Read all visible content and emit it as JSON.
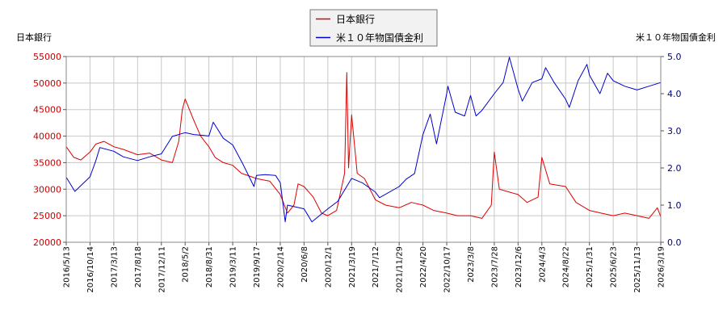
{
  "chart_data": {
    "type": "line",
    "left_axis_title": "日本銀行",
    "right_axis_title": "米１０年物国債金利",
    "ylim_left": [
      20000,
      55000
    ],
    "ylim_right": [
      0.0,
      5.0
    ],
    "yticks_left": [
      "55000",
      "50000",
      "45000",
      "40000",
      "35000",
      "30000",
      "25000",
      "20000"
    ],
    "yticks_right": [
      "5.0",
      "4.0",
      "3.0",
      "2.0",
      "1.0",
      "0.0"
    ],
    "x_tick_labels": [
      "2016/5/13",
      "2016/10/14",
      "2017/3/13",
      "2017/8/18",
      "2017/12/11",
      "2018/5/2",
      "2018/8/31",
      "2019/3/11",
      "2019/9/17",
      "2020/2/14",
      "2020/6/8",
      "2020/12/1",
      "2021/3/19",
      "2021/7/12",
      "2021/11/29",
      "2022/4/20",
      "2022/10/17",
      "2023/3/8",
      "2023/7/28",
      "2023/12/6",
      "2024/4/3",
      "2024/8/22",
      "2025/1/31",
      "2025/6/23",
      "2025/11/13",
      "2026/3/19"
    ],
    "grid": true,
    "legend_position": "top-center",
    "colors": {
      "series1": "#dd0000",
      "series2": "#0000cc",
      "left_ticks": "#cc0000",
      "right_ticks": "#000080",
      "grid": "#c8c8c8"
    },
    "series": [
      {
        "name": "日本銀行",
        "axis": "left",
        "x": [
          "2016/5/13",
          "2016/7/1",
          "2016/8/15",
          "2016/10/14",
          "2016/11/20",
          "2017/1/10",
          "2017/3/13",
          "2017/5/15",
          "2017/8/18",
          "2017/10/15",
          "2017/12/11",
          "2018/2/15",
          "2018/3/25",
          "2018/4/15",
          "2018/5/2",
          "2018/6/15",
          "2018/7/20",
          "2018/8/31",
          "2018/10/20",
          "2018/12/25",
          "2019/3/11",
          "2019/5/20",
          "2019/7/20",
          "2019/9/17",
          "2019/12/10",
          "2020/2/14",
          "2020/3/20",
          "2020/4/20",
          "2020/5/10",
          "2020/6/8",
          "2020/8/15",
          "2020/10/15",
          "2020/12/1",
          "2021/1/10",
          "2021/2/15",
          "2021/2/25",
          "2021/3/5",
          "2021/3/19",
          "2021/4/15",
          "2021/5/20",
          "2021/7/12",
          "2021/9/10",
          "2021/11/29",
          "2022/2/10",
          "2022/4/20",
          "2022/7/10",
          "2022/10/17",
          "2022/12/20",
          "2023/3/8",
          "2023/5/15",
          "2023/7/10",
          "2023/7/28",
          "2023/8/25",
          "2023/10/15",
          "2023/12/6",
          "2024/1/20",
          "2024/3/15",
          "2024/4/3",
          "2024/5/20",
          "2024/8/22",
          "2024/11/1",
          "2025/1/31",
          "2025/4/10",
          "2025/6/23",
          "2025/9/1",
          "2025/11/13",
          "2026/1/15",
          "2026/3/1",
          "2026/3/19",
          "2026/4/20"
        ],
        "values": [
          38000,
          36000,
          35500,
          37000,
          38500,
          39000,
          38000,
          37500,
          36500,
          36800,
          35500,
          35000,
          39000,
          45000,
          47000,
          43000,
          40000,
          38000,
          36000,
          35000,
          34500,
          33000,
          32500,
          32000,
          31500,
          29000,
          25500,
          27000,
          31000,
          30500,
          28500,
          25500,
          25000,
          26000,
          33000,
          52000,
          34000,
          44000,
          33000,
          32000,
          28000,
          27000,
          26500,
          27500,
          27000,
          26000,
          25500,
          25000,
          25000,
          24500,
          27000,
          37000,
          30000,
          29500,
          29000,
          27500,
          28500,
          36000,
          31000,
          30500,
          27500,
          26000,
          25500,
          25000,
          25500,
          25000,
          24500,
          26500,
          24800,
          24500
        ]
      },
      {
        "name": "米１０年物国債金利",
        "axis": "right",
        "x": [
          "2016/5/13",
          "2016/7/8",
          "2016/10/14",
          "2016/11/20",
          "2016/12/15",
          "2017/3/13",
          "2017/5/15",
          "2017/8/18",
          "2017/10/15",
          "2017/12/11",
          "2018/2/15",
          "2018/5/2",
          "2018/6/15",
          "2018/8/31",
          "2018/10/5",
          "2018/12/25",
          "2019/3/11",
          "2019/6/1",
          "2019/8/28",
          "2019/9/17",
          "2019/11/10",
          "2020/1/15",
          "2020/2/14",
          "2020/3/9",
          "2020/3/20",
          "2020/6/8",
          "2020/8/5",
          "2020/12/1",
          "2021/1/15",
          "2021/3/19",
          "2021/5/10",
          "2021/7/12",
          "2021/8/5",
          "2021/11/29",
          "2022/1/10",
          "2022/3/1",
          "2022/4/20",
          "2022/6/14",
          "2022/8/1",
          "2022/10/17",
          "2022/10/24",
          "2022/12/7",
          "2023/2/1",
          "2023/3/8",
          "2023/4/10",
          "2023/5/15",
          "2023/7/28",
          "2023/9/15",
          "2023/10/19",
          "2023/12/6",
          "2023/12/27",
          "2024/2/15",
          "2024/4/3",
          "2024/4/25",
          "2024/6/15",
          "2024/8/22",
          "2024/9/16",
          "2024/11/15",
          "2025/1/14",
          "2025/1/31",
          "2025/4/4",
          "2025/5/20",
          "2025/6/23",
          "2025/9/1",
          "2025/11/13",
          "2026/1/15",
          "2026/3/19",
          "2026/4/20"
        ],
        "values": [
          1.75,
          1.37,
          1.76,
          2.2,
          2.55,
          2.45,
          2.3,
          2.2,
          2.3,
          2.38,
          2.85,
          2.95,
          2.9,
          2.86,
          3.23,
          2.8,
          2.62,
          2.1,
          1.5,
          1.8,
          1.82,
          1.8,
          1.6,
          0.55,
          1.0,
          0.9,
          0.55,
          0.9,
          1.1,
          1.72,
          1.6,
          1.35,
          1.2,
          1.5,
          1.7,
          1.85,
          2.9,
          3.45,
          2.65,
          4.0,
          4.2,
          3.5,
          3.4,
          3.95,
          3.4,
          3.55,
          4.0,
          4.3,
          4.98,
          4.12,
          3.8,
          4.3,
          4.4,
          4.7,
          4.3,
          3.85,
          3.63,
          4.35,
          4.79,
          4.5,
          4.0,
          4.55,
          4.35,
          4.2,
          4.1,
          4.2,
          4.3,
          4.45
        ]
      }
    ]
  }
}
